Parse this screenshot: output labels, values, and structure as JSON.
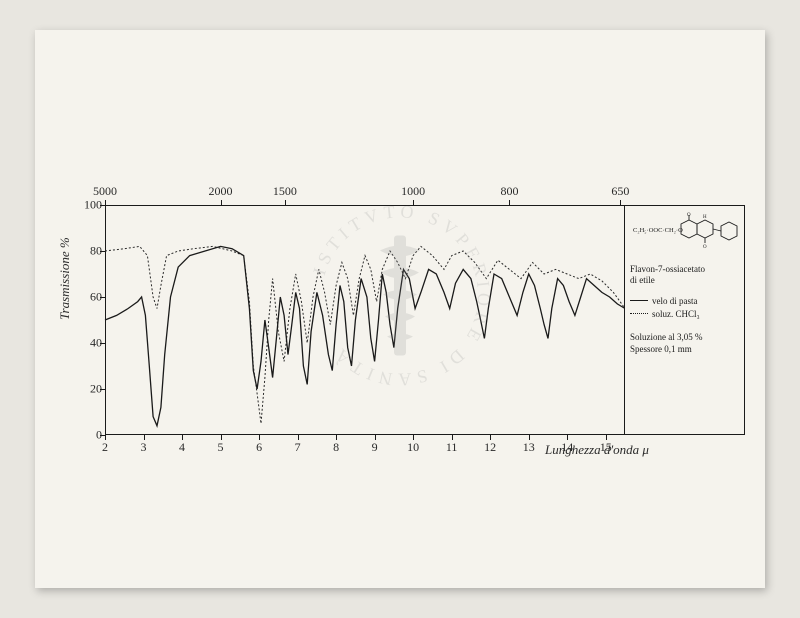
{
  "chart": {
    "type": "line",
    "y_label": "Trasmissione %",
    "x_label": "Lunghezza d'onda μ",
    "xlim_bottom": [
      2,
      15.5
    ],
    "ylim": [
      0,
      100
    ],
    "y_ticks": [
      0,
      20,
      40,
      60,
      80,
      100
    ],
    "x_ticks_bottom": [
      2,
      3,
      4,
      5,
      6,
      7,
      8,
      9,
      10,
      11,
      12,
      13,
      14,
      15
    ],
    "x_ticks_top": [
      {
        "label": "5000",
        "pos": 2.0
      },
      {
        "label": "2000",
        "pos": 5.0
      },
      {
        "label": "1500",
        "pos": 6.67
      },
      {
        "label": "1000",
        "pos": 10.0
      },
      {
        "label": "800",
        "pos": 12.5
      },
      {
        "label": "650",
        "pos": 15.38
      }
    ],
    "series": {
      "solid": {
        "label": "velo di pasta",
        "color": "#1a1a1a",
        "line_width": 1.3,
        "dash": "none",
        "data": [
          [
            2.0,
            50
          ],
          [
            2.3,
            52
          ],
          [
            2.6,
            55
          ],
          [
            2.85,
            58
          ],
          [
            2.95,
            60
          ],
          [
            3.05,
            52
          ],
          [
            3.15,
            30
          ],
          [
            3.25,
            8
          ],
          [
            3.35,
            4
          ],
          [
            3.45,
            12
          ],
          [
            3.55,
            35
          ],
          [
            3.7,
            60
          ],
          [
            3.9,
            73
          ],
          [
            4.2,
            78
          ],
          [
            4.6,
            80
          ],
          [
            5.0,
            82
          ],
          [
            5.3,
            81
          ],
          [
            5.6,
            78
          ],
          [
            5.75,
            55
          ],
          [
            5.85,
            28
          ],
          [
            5.95,
            20
          ],
          [
            6.05,
            32
          ],
          [
            6.15,
            50
          ],
          [
            6.25,
            38
          ],
          [
            6.35,
            25
          ],
          [
            6.45,
            42
          ],
          [
            6.55,
            60
          ],
          [
            6.65,
            52
          ],
          [
            6.75,
            35
          ],
          [
            6.85,
            48
          ],
          [
            6.95,
            62
          ],
          [
            7.05,
            55
          ],
          [
            7.15,
            30
          ],
          [
            7.25,
            22
          ],
          [
            7.35,
            45
          ],
          [
            7.5,
            62
          ],
          [
            7.65,
            52
          ],
          [
            7.8,
            35
          ],
          [
            7.9,
            28
          ],
          [
            8.0,
            48
          ],
          [
            8.1,
            65
          ],
          [
            8.2,
            58
          ],
          [
            8.3,
            38
          ],
          [
            8.4,
            30
          ],
          [
            8.5,
            50
          ],
          [
            8.65,
            68
          ],
          [
            8.8,
            60
          ],
          [
            8.9,
            42
          ],
          [
            9.0,
            32
          ],
          [
            9.1,
            50
          ],
          [
            9.2,
            70
          ],
          [
            9.3,
            62
          ],
          [
            9.4,
            48
          ],
          [
            9.5,
            38
          ],
          [
            9.6,
            55
          ],
          [
            9.75,
            72
          ],
          [
            9.9,
            68
          ],
          [
            10.05,
            55
          ],
          [
            10.2,
            62
          ],
          [
            10.4,
            72
          ],
          [
            10.6,
            70
          ],
          [
            10.8,
            62
          ],
          [
            10.95,
            55
          ],
          [
            11.1,
            66
          ],
          [
            11.3,
            72
          ],
          [
            11.5,
            68
          ],
          [
            11.65,
            58
          ],
          [
            11.75,
            50
          ],
          [
            11.85,
            42
          ],
          [
            11.95,
            55
          ],
          [
            12.1,
            70
          ],
          [
            12.3,
            68
          ],
          [
            12.5,
            60
          ],
          [
            12.7,
            52
          ],
          [
            12.85,
            62
          ],
          [
            13.0,
            70
          ],
          [
            13.15,
            65
          ],
          [
            13.3,
            55
          ],
          [
            13.4,
            48
          ],
          [
            13.5,
            42
          ],
          [
            13.6,
            55
          ],
          [
            13.75,
            68
          ],
          [
            13.9,
            65
          ],
          [
            14.05,
            58
          ],
          [
            14.2,
            52
          ],
          [
            14.35,
            60
          ],
          [
            14.5,
            68
          ],
          [
            14.7,
            65
          ],
          [
            14.9,
            62
          ],
          [
            15.1,
            60
          ],
          [
            15.3,
            57
          ],
          [
            15.5,
            55
          ]
        ]
      },
      "dotted": {
        "label": "soluz. CHCl₃",
        "color": "#2a2a2a",
        "line_width": 1.0,
        "dash": "2,2",
        "data": [
          [
            2.0,
            80
          ],
          [
            2.5,
            81
          ],
          [
            2.9,
            82
          ],
          [
            3.1,
            78
          ],
          [
            3.25,
            60
          ],
          [
            3.35,
            55
          ],
          [
            3.45,
            65
          ],
          [
            3.6,
            78
          ],
          [
            3.9,
            80
          ],
          [
            4.3,
            81
          ],
          [
            4.8,
            82
          ],
          [
            5.3,
            80
          ],
          [
            5.6,
            78
          ],
          [
            5.75,
            58
          ],
          [
            5.85,
            30
          ],
          [
            5.95,
            18
          ],
          [
            6.05,
            5
          ],
          [
            6.15,
            25
          ],
          [
            6.25,
            50
          ],
          [
            6.35,
            68
          ],
          [
            6.5,
            45
          ],
          [
            6.65,
            32
          ],
          [
            6.8,
            55
          ],
          [
            6.95,
            70
          ],
          [
            7.1,
            58
          ],
          [
            7.25,
            40
          ],
          [
            7.4,
            60
          ],
          [
            7.55,
            72
          ],
          [
            7.7,
            62
          ],
          [
            7.85,
            48
          ],
          [
            8.0,
            65
          ],
          [
            8.15,
            75
          ],
          [
            8.3,
            68
          ],
          [
            8.45,
            52
          ],
          [
            8.6,
            68
          ],
          [
            8.75,
            78
          ],
          [
            8.9,
            72
          ],
          [
            9.05,
            58
          ],
          [
            9.2,
            72
          ],
          [
            9.4,
            80
          ],
          [
            9.6,
            75
          ],
          [
            9.8,
            68
          ],
          [
            10.0,
            78
          ],
          [
            10.2,
            82
          ],
          [
            10.5,
            78
          ],
          [
            10.8,
            72
          ],
          [
            11.0,
            78
          ],
          [
            11.3,
            80
          ],
          [
            11.6,
            75
          ],
          [
            11.9,
            68
          ],
          [
            12.2,
            76
          ],
          [
            12.5,
            72
          ],
          [
            12.8,
            68
          ],
          [
            13.1,
            75
          ],
          [
            13.4,
            70
          ],
          [
            13.7,
            72
          ],
          [
            14.0,
            70
          ],
          [
            14.3,
            68
          ],
          [
            14.6,
            70
          ],
          [
            14.9,
            67
          ],
          [
            15.2,
            62
          ],
          [
            15.5,
            55
          ]
        ]
      }
    },
    "background_color": "#f5f3ed",
    "frame_color": "#1a1a1a",
    "tick_font_size": 12,
    "label_font_size": 13
  },
  "info": {
    "molecule_formula": "C₂H₅·OOC·CH₂·O",
    "compound_name_1": "Flavon-7-ossiacetato",
    "compound_name_2": "di etile",
    "legend_solid": "velo di pasta",
    "legend_dotted": "soluz. CHCl₃",
    "conditions_1": "Soluzione al 3,05 %",
    "conditions_2": "Spessore 0,1 mm"
  },
  "watermark": {
    "text_ring": "SVPERIORE DI SANITÀ ISTITVTO",
    "color": "#888888",
    "opacity": 0.18
  }
}
